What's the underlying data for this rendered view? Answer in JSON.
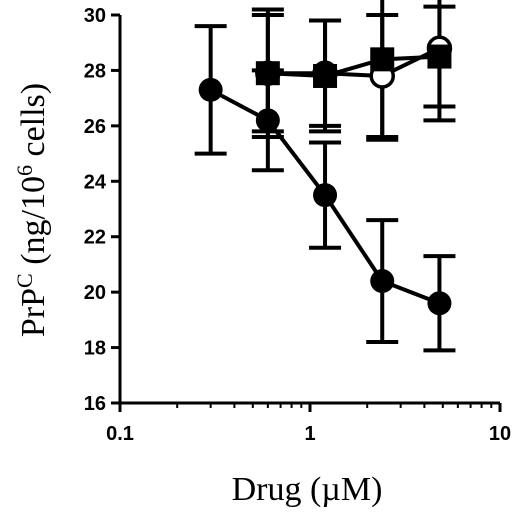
{
  "chart_data": {
    "type": "scatter",
    "xlabel": "Drug (µM)",
    "ylabel": {
      "base": "PrP",
      "sup": "C",
      "rest1": " (ng/10",
      "sup2": "6",
      "rest2": " cells)"
    },
    "xscale": "log",
    "xlim": [
      0.1,
      10
    ],
    "ylim": [
      16,
      30
    ],
    "xticks": [
      0.1,
      1,
      10
    ],
    "xtick_labels": [
      "0.1",
      "1",
      "10"
    ],
    "yticks": [
      16,
      18,
      20,
      22,
      24,
      26,
      28,
      30
    ],
    "ytick_labels": [
      "16",
      "18",
      "20",
      "22",
      "24",
      "26",
      "28",
      "30"
    ],
    "grid": false,
    "series": [
      {
        "marker": "filled-circle",
        "x": [
          0.3,
          0.6,
          1.2,
          2.4,
          4.8
        ],
        "y": [
          27.3,
          26.2,
          23.5,
          20.4,
          19.6
        ],
        "err": [
          2.3,
          1.8,
          1.9,
          2.2,
          1.7
        ]
      },
      {
        "marker": "open-circle",
        "x": [
          0.6,
          1.2,
          2.4,
          4.8
        ],
        "y": [
          27.9,
          27.9,
          27.8,
          28.8
        ],
        "err": [
          2.1,
          1.9,
          2.2,
          2.6
        ]
      },
      {
        "marker": "filled-square",
        "x": [
          0.6,
          1.2,
          2.4,
          4.8
        ],
        "y": [
          27.9,
          27.8,
          28.4,
          28.5
        ],
        "err": [
          2.3,
          2.0,
          2.9,
          1.8
        ]
      }
    ]
  }
}
